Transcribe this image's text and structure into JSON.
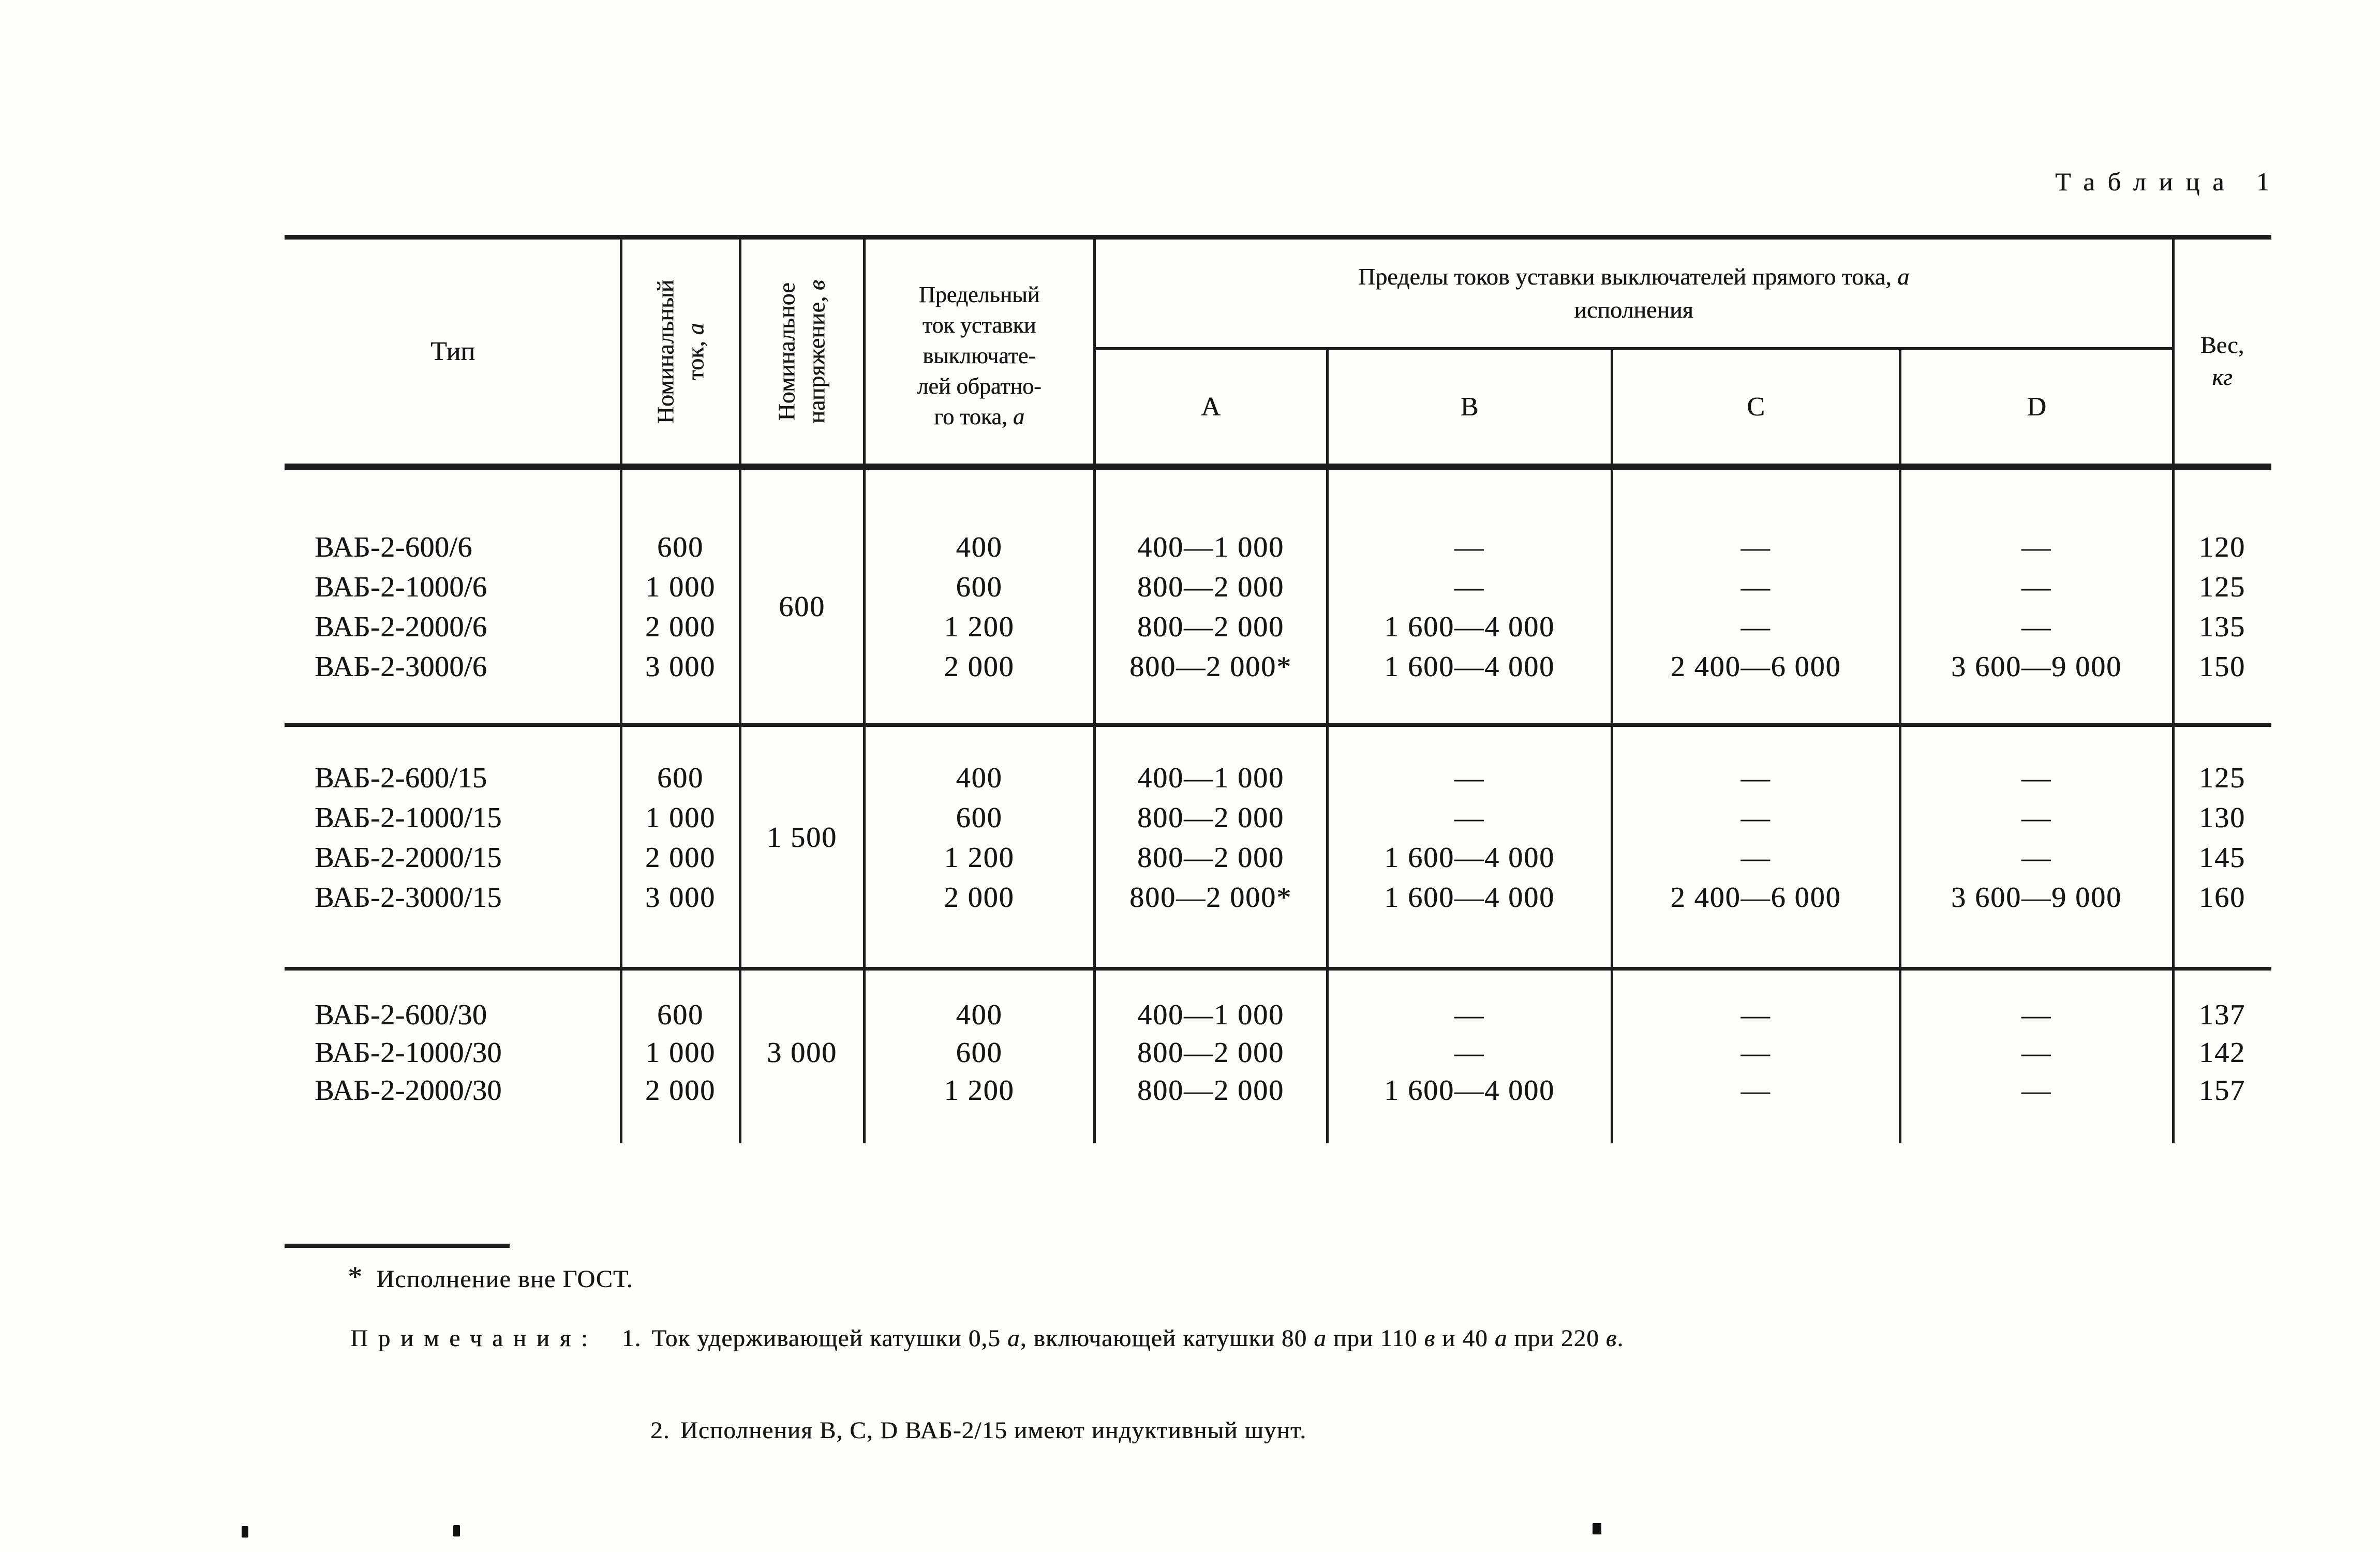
{
  "page": {
    "title": "Таблица 1"
  },
  "table": {
    "headers": {
      "type": "Тип",
      "current": {
        "l1": "Номинальный",
        "l2": "ток, ",
        "unit": "а"
      },
      "voltage": {
        "l1": "Номинальное",
        "l2": "напряжение, ",
        "unit": "в"
      },
      "limit": {
        "l1": "Предельный",
        "l2": "ток уставки",
        "l3": "выключате-",
        "l4": "лей обратно-",
        "l5": "го тока, ",
        "unit": "а"
      },
      "span": {
        "l1": "Пределы токов уставки выключателей прямого тока, ",
        "unit": "а",
        "l2": "исполнения"
      },
      "exec": [
        "А",
        "В",
        "С",
        "D"
      ],
      "weight": {
        "l1": "Вес,",
        "unit": "кг"
      }
    },
    "blocks": [
      {
        "voltage": "600",
        "rows": [
          {
            "type": "ВАБ-2-600/6",
            "current": "600",
            "limit": "400",
            "a": "400—1 000",
            "b": "—",
            "c": "—",
            "d": "—",
            "weight": "120"
          },
          {
            "type": "ВАБ-2-1000/6",
            "current": "1 000",
            "limit": "600",
            "a": "800—2 000",
            "b": "—",
            "c": "—",
            "d": "—",
            "weight": "125"
          },
          {
            "type": "ВАБ-2-2000/6",
            "current": "2 000",
            "limit": "1 200",
            "a": "800—2 000",
            "b": "1 600—4 000",
            "c": "—",
            "d": "—",
            "weight": "135"
          },
          {
            "type": "ВАБ-2-3000/6",
            "current": "3 000",
            "limit": "2 000",
            "a": "800—2 000*",
            "b": "1 600—4 000",
            "c": "2 400—6 000",
            "d": "3 600—9 000",
            "weight": "150"
          }
        ]
      },
      {
        "voltage": "1 500",
        "rows": [
          {
            "type": "ВАБ-2-600/15",
            "current": "600",
            "limit": "400",
            "a": "400—1 000",
            "b": "—",
            "c": "—",
            "d": "—",
            "weight": "125"
          },
          {
            "type": "ВАБ-2-1000/15",
            "current": "1 000",
            "limit": "600",
            "a": "800—2 000",
            "b": "—",
            "c": "—",
            "d": "—",
            "weight": "130"
          },
          {
            "type": "ВАБ-2-2000/15",
            "current": "2 000",
            "limit": "1 200",
            "a": "800—2 000",
            "b": "1 600—4 000",
            "c": "—",
            "d": "—",
            "weight": "145"
          },
          {
            "type": "ВАБ-2-3000/15",
            "current": "3 000",
            "limit": "2 000",
            "a": "800—2 000*",
            "b": "1 600—4 000",
            "c": "2 400—6 000",
            "d": "3 600—9 000",
            "weight": "160"
          }
        ]
      },
      {
        "voltage": "3 000",
        "rows": [
          {
            "type": "ВАБ-2-600/30",
            "current": "600",
            "limit": "400",
            "a": "400—1 000",
            "b": "—",
            "c": "—",
            "d": "—",
            "weight": "137"
          },
          {
            "type": "ВАБ-2-1000/30",
            "current": "1 000",
            "limit": "600",
            "a": "800—2 000",
            "b": "—",
            "c": "—",
            "d": "—",
            "weight": "142"
          },
          {
            "type": "ВАБ-2-2000/30",
            "current": "2 000",
            "limit": "1 200",
            "a": "800—2 000",
            "b": "1 600—4 000",
            "c": "—",
            "d": "—",
            "weight": "157"
          }
        ]
      }
    ]
  },
  "notes": {
    "star": "*",
    "star_text": "Исполнение вне ГОСТ.",
    "label": "Примечания:",
    "n1_num": "1.",
    "n1": [
      "Ток удерживающей катушки 0,5 ",
      "а",
      ", включающей катушки 80 ",
      "а",
      " при 110 ",
      "в",
      " и 40 ",
      "а",
      " при 220 ",
      "в",
      "."
    ],
    "n2_num": "2.",
    "n2": "Исполнения В, С, D ВАБ-2/15 имеют индуктивный шунт."
  }
}
